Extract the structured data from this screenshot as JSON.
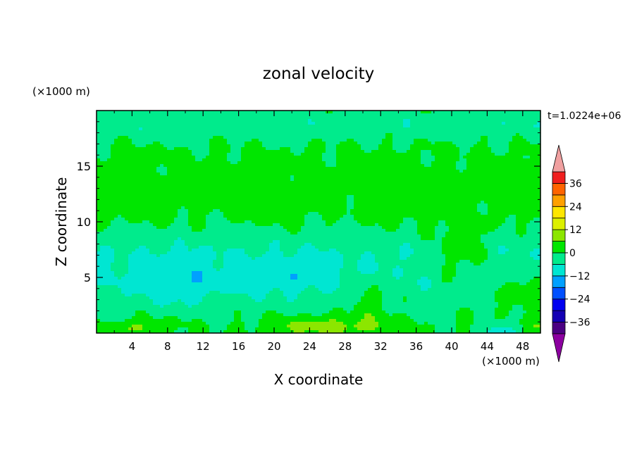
{
  "chart_data": {
    "type": "heatmap",
    "title": "zonal velocity",
    "xlabel": "X coordinate",
    "ylabel": "Z coordinate",
    "x_unit_label": "(×1000 m)",
    "y_unit_label": "(×1000 m)",
    "time_label": "t=1.0224e+06",
    "xlim": [
      0,
      50
    ],
    "ylim": [
      0,
      20
    ],
    "x_ticks": [
      4,
      8,
      12,
      16,
      20,
      24,
      28,
      32,
      36,
      40,
      44,
      48
    ],
    "x_tick_labels": [
      "4",
      "8",
      "12",
      "16",
      "20",
      "24",
      "28",
      "32",
      "36",
      "40",
      "44",
      "48"
    ],
    "y_ticks": [
      5,
      10,
      15
    ],
    "y_tick_labels": [
      "5",
      "10",
      "15"
    ],
    "colorbar": {
      "levels": [
        -42,
        -36,
        -30,
        -24,
        -18,
        -12,
        -6,
        0,
        6,
        12,
        18,
        24,
        30,
        36,
        42
      ],
      "tick_values": [
        -36,
        -24,
        -12,
        0,
        12,
        24,
        36
      ],
      "tick_labels": [
        "−36",
        "−24",
        "−12",
        "0",
        "12",
        "24",
        "36"
      ],
      "colors": [
        "#4b0082",
        "#1400b4",
        "#0000f0",
        "#0050ff",
        "#00a0ff",
        "#00e6d2",
        "#00eb8c",
        "#00e600",
        "#8ce600",
        "#dcf000",
        "#ffe600",
        "#ffa000",
        "#ff6400",
        "#f01e1e"
      ],
      "under_color": "#8c00a0",
      "over_color": "#f0a0a0"
    }
  }
}
